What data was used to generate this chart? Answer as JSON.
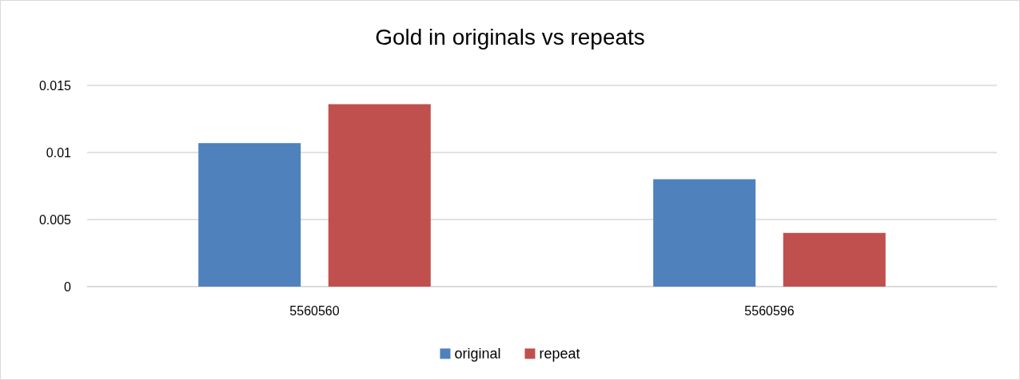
{
  "chart_data": {
    "type": "bar",
    "title": "Gold in originals vs repeats",
    "categories": [
      "5560560",
      "5560596"
    ],
    "series": [
      {
        "name": "original",
        "color": "#4f81bd",
        "values": [
          0.0107,
          0.008
        ]
      },
      {
        "name": "repeat",
        "color": "#c0504d",
        "values": [
          0.0136,
          0.004
        ]
      }
    ],
    "ylim": [
      0,
      0.015
    ],
    "yticks": [
      0,
      0.005,
      0.01,
      0.015
    ],
    "grid": "y",
    "legend": "bottom"
  }
}
